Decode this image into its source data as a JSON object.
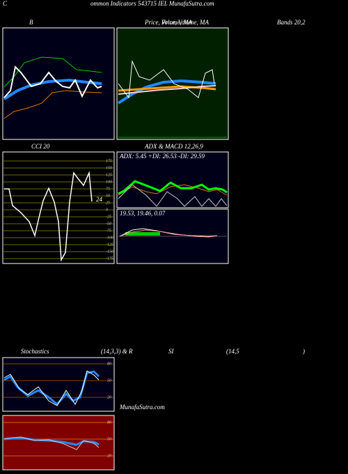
{
  "header": {
    "c": "C",
    "title": "ommon  Indicators 543715 IEL  MunafaSutra.com"
  },
  "panels": {
    "bollinger": "B",
    "price": "Price,  Volume, MA",
    "price_overlay": "Price, Volume, MA",
    "bands": "Bands 20,2",
    "cci": "CCI 20",
    "cci_value": "24",
    "cci_ticks": [
      175,
      150,
      125,
      100,
      75,
      50,
      25,
      0,
      -25,
      -50,
      -75,
      -100,
      -125,
      -150,
      -175
    ],
    "adx": "ADX  & MACD 12,26,9",
    "adx_values": "ADX: 5.45  +DI: 26.53 -DI: 29.59",
    "macd_values": "19.53,  19.46,  0.07",
    "stoch": "Stochastics",
    "stoch_params": "(14,3,3) & R",
    "rsi": "SI",
    "rsi_params": "(14,5",
    "rsi_close": ")",
    "stoch_ticks": [
      80,
      50,
      20
    ],
    "rsi_ticks": [
      80,
      50,
      20
    ]
  },
  "watermark": "MunafaSutra.com"
}
